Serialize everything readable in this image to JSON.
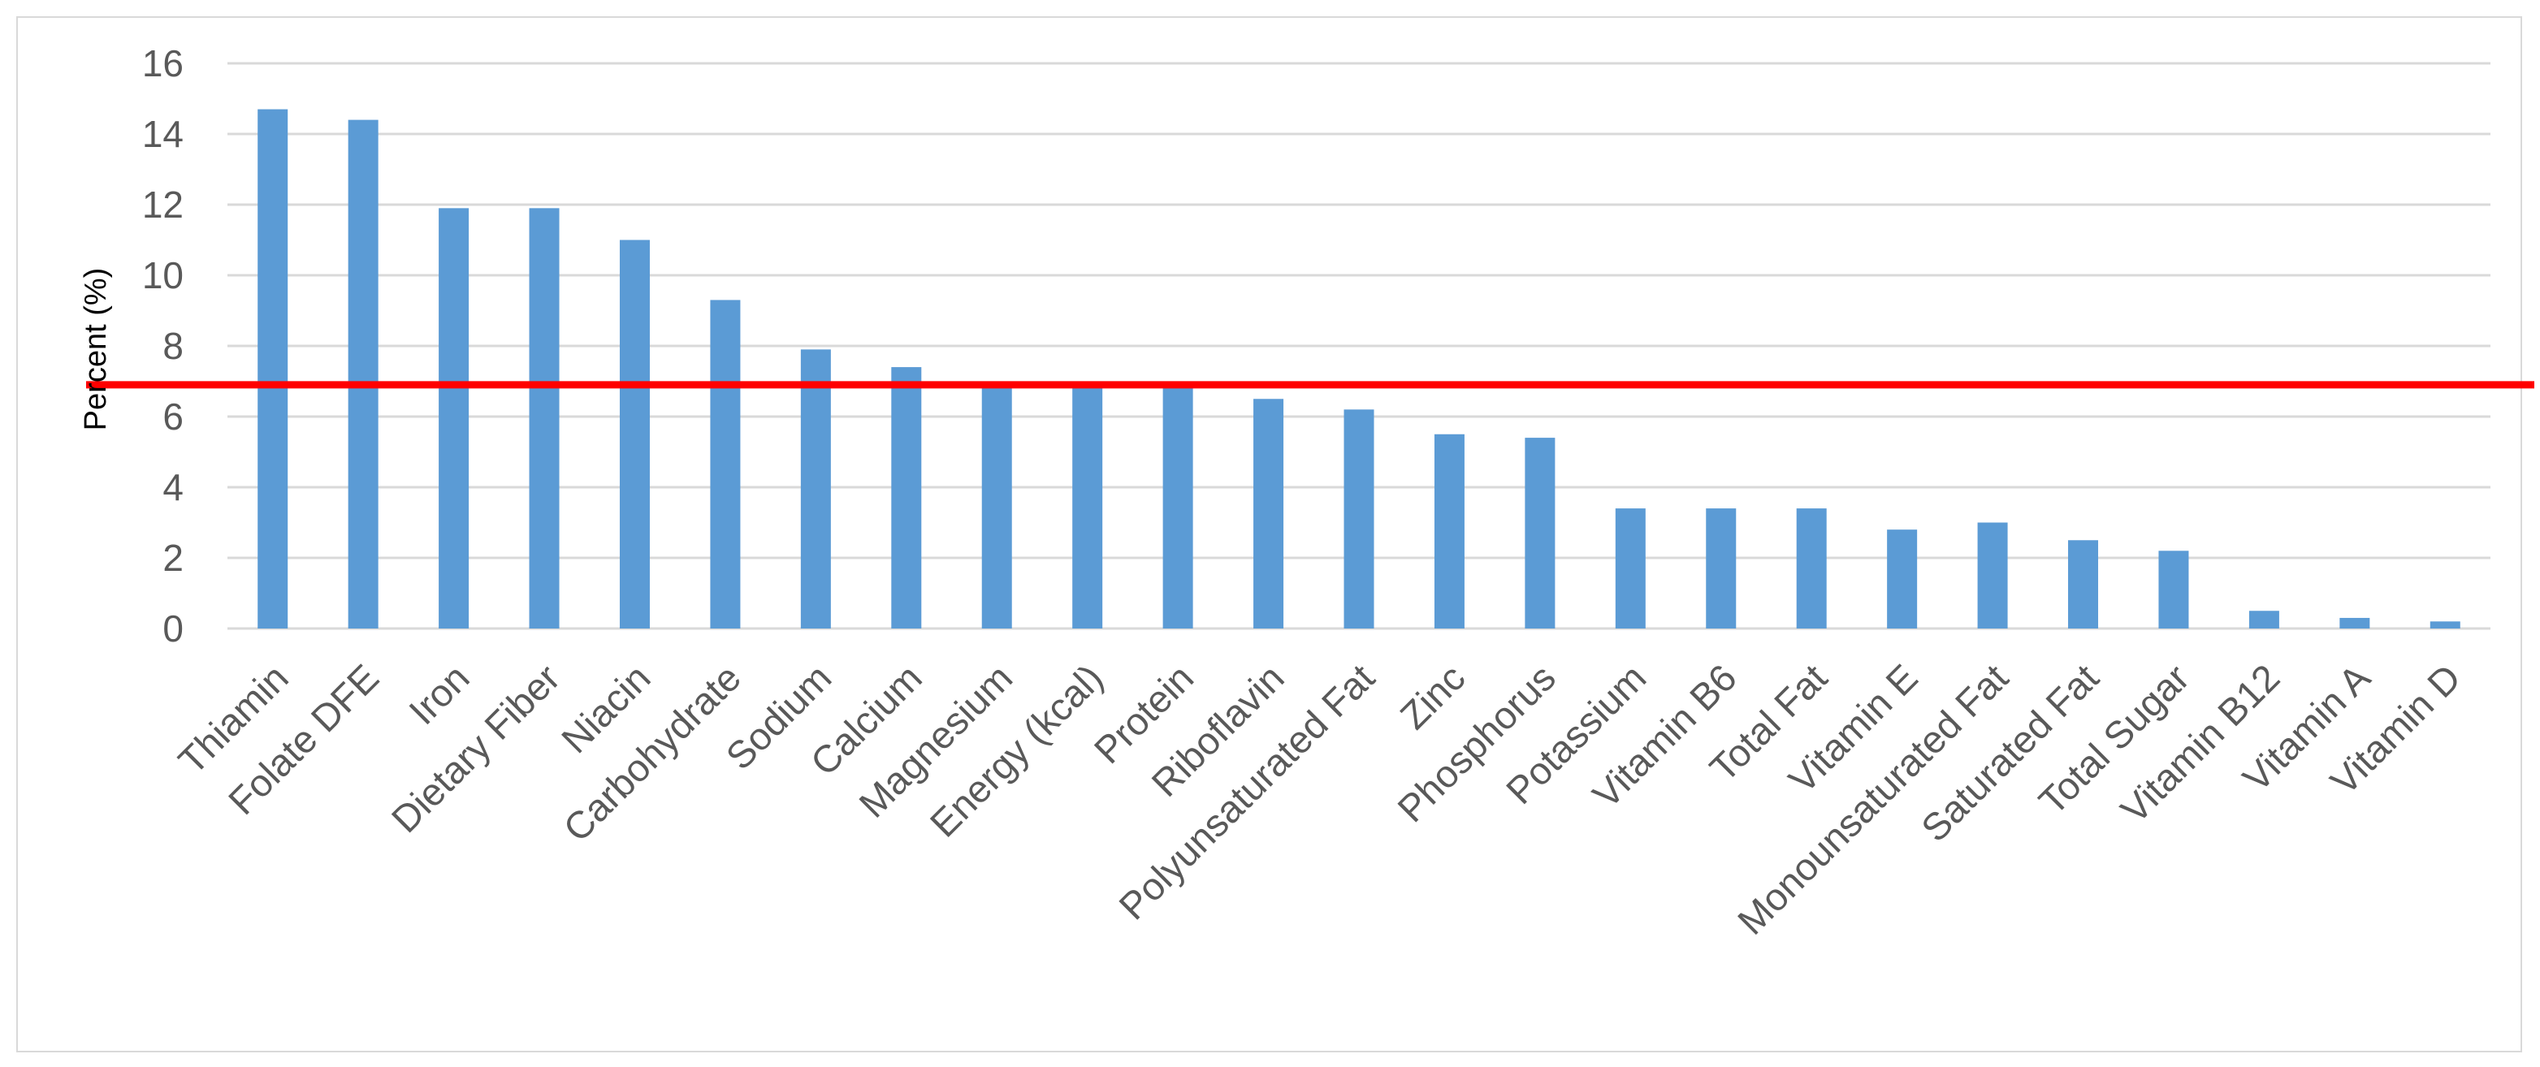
{
  "chart_data": {
    "type": "bar",
    "title": "",
    "xlabel": "",
    "ylabel": "Percent (%)",
    "ylim": [
      0,
      16
    ],
    "yticks": [
      0,
      2,
      4,
      6,
      8,
      10,
      12,
      14,
      16
    ],
    "grid": true,
    "legend": "none",
    "categories": [
      "Thiamin",
      "Folate DFE",
      "Iron",
      "Dietary Fiber",
      "Niacin",
      "Carbohydrate",
      "Sodium",
      "Calcium",
      "Magnesium",
      "Energy (kcal)",
      "Protein",
      "Riboflavin",
      "Polyunsaturated Fat",
      "Zinc",
      "Phosphorus",
      "Potassium",
      "Vitamin B6",
      "Total Fat",
      "Vitamin E",
      "Monounsaturated Fat",
      "Saturated Fat",
      "Total Sugar",
      "Vitamin B12",
      "Vitamin A",
      "Vitamin D"
    ],
    "values": [
      14.7,
      14.4,
      11.9,
      11.9,
      11.0,
      9.3,
      7.9,
      7.4,
      7.0,
      7.0,
      6.9,
      6.5,
      6.2,
      5.5,
      5.4,
      3.4,
      3.4,
      3.4,
      2.8,
      3.0,
      2.5,
      2.2,
      0.5,
      0.3,
      0.2
    ],
    "bar_color": "#5b9bd5",
    "reference_line": {
      "y": 6.9,
      "color": "#ff0000"
    },
    "grid_color": "#d9d9d9"
  }
}
